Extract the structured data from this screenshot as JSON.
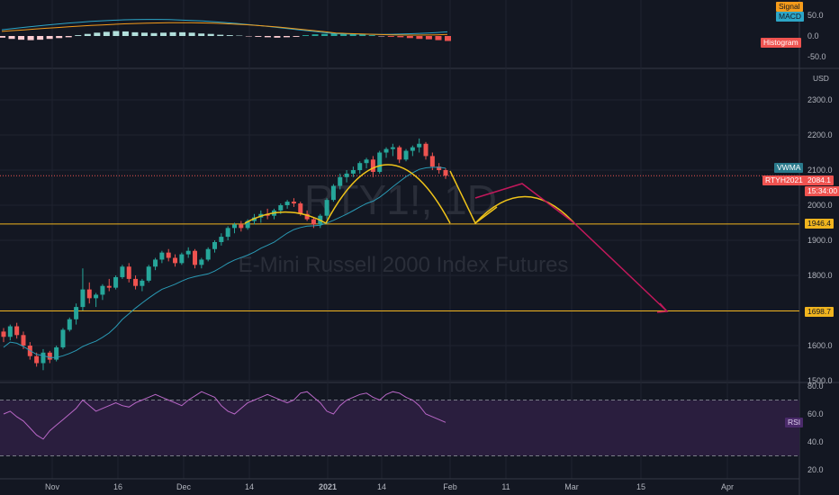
{
  "chart_data": {
    "type": "candlestick",
    "symbol_watermark": "RTY1!, 1D",
    "description_watermark": "E-Mini Russell 2000 Index Futures",
    "currency": "USD",
    "x_ticks": [
      "Nov",
      "16",
      "Dec",
      "14",
      "2021",
      "14",
      "Feb",
      "11",
      "Mar",
      "15",
      "Apr"
    ],
    "price_axis": {
      "ticks": [
        1500.0,
        1600.0,
        1700.0,
        1800.0,
        1900.0,
        2000.0,
        2100.0,
        2200.0,
        2300.0
      ],
      "range": [
        1500,
        2400
      ]
    },
    "levels": {
      "resistance": 1946.4,
      "target": 1698.7
    },
    "last_price": 2084.1,
    "last_symbol": "RTYH2021",
    "countdown": "15:34:00",
    "vwma_label": "VWMA",
    "macd_pane": {
      "ticks": [
        50.0,
        0.0,
        -50.0
      ],
      "legend": [
        "Signal",
        "MACD",
        "Histogram"
      ]
    },
    "rsi_pane": {
      "ticks": [
        80.0,
        60.0,
        40.0,
        20.0
      ],
      "upper_band": 70,
      "lower_band": 30,
      "label": "RSI"
    },
    "candles": [
      [
        1640,
        1650,
        1610,
        1625
      ],
      [
        1625,
        1660,
        1615,
        1655
      ],
      [
        1655,
        1665,
        1620,
        1630
      ],
      [
        1630,
        1640,
        1590,
        1600
      ],
      [
        1600,
        1610,
        1560,
        1570
      ],
      [
        1570,
        1580,
        1540,
        1550
      ],
      [
        1550,
        1590,
        1530,
        1580
      ],
      [
        1580,
        1585,
        1550,
        1560
      ],
      [
        1560,
        1600,
        1555,
        1595
      ],
      [
        1595,
        1650,
        1590,
        1645
      ],
      [
        1645,
        1680,
        1640,
        1675
      ],
      [
        1675,
        1720,
        1660,
        1710
      ],
      [
        1710,
        1820,
        1700,
        1760
      ],
      [
        1760,
        1780,
        1720,
        1735
      ],
      [
        1735,
        1750,
        1710,
        1745
      ],
      [
        1745,
        1775,
        1730,
        1770
      ],
      [
        1770,
        1790,
        1755,
        1765
      ],
      [
        1765,
        1800,
        1760,
        1795
      ],
      [
        1795,
        1830,
        1790,
        1825
      ],
      [
        1825,
        1835,
        1780,
        1790
      ],
      [
        1790,
        1800,
        1760,
        1770
      ],
      [
        1770,
        1790,
        1755,
        1785
      ],
      [
        1785,
        1830,
        1780,
        1825
      ],
      [
        1825,
        1850,
        1815,
        1845
      ],
      [
        1845,
        1870,
        1835,
        1865
      ],
      [
        1865,
        1875,
        1840,
        1850
      ],
      [
        1850,
        1860,
        1825,
        1835
      ],
      [
        1835,
        1865,
        1830,
        1860
      ],
      [
        1860,
        1880,
        1850,
        1870
      ],
      [
        1870,
        1875,
        1820,
        1830
      ],
      [
        1830,
        1850,
        1820,
        1845
      ],
      [
        1845,
        1880,
        1840,
        1875
      ],
      [
        1875,
        1900,
        1865,
        1895
      ],
      [
        1895,
        1920,
        1885,
        1910
      ],
      [
        1910,
        1940,
        1900,
        1935
      ],
      [
        1935,
        1950,
        1920,
        1945
      ],
      [
        1945,
        1955,
        1925,
        1935
      ],
      [
        1935,
        1960,
        1930,
        1955
      ],
      [
        1955,
        1975,
        1945,
        1965
      ],
      [
        1965,
        1985,
        1950,
        1975
      ],
      [
        1975,
        1990,
        1960,
        1970
      ],
      [
        1970,
        1990,
        1960,
        1985
      ],
      [
        1985,
        2005,
        1975,
        2000
      ],
      [
        2000,
        2015,
        1990,
        2010
      ],
      [
        2010,
        2020,
        1995,
        2005
      ],
      [
        2005,
        2010,
        1970,
        1975
      ],
      [
        1975,
        1985,
        1955,
        1960
      ],
      [
        1960,
        1965,
        1935,
        1945
      ],
      [
        1945,
        1975,
        1935,
        1970
      ],
      [
        1970,
        2020,
        1960,
        2015
      ],
      [
        2015,
        2060,
        2010,
        2055
      ],
      [
        2055,
        2090,
        2045,
        2080
      ],
      [
        2080,
        2100,
        2065,
        2090
      ],
      [
        2090,
        2110,
        2080,
        2100
      ],
      [
        2100,
        2125,
        2090,
        2120
      ],
      [
        2120,
        2135,
        2105,
        2130
      ],
      [
        2130,
        2140,
        2080,
        2095
      ],
      [
        2095,
        2155,
        2090,
        2150
      ],
      [
        2150,
        2165,
        2135,
        2160
      ],
      [
        2160,
        2175,
        2140,
        2165
      ],
      [
        2165,
        2170,
        2120,
        2130
      ],
      [
        2130,
        2160,
        2125,
        2155
      ],
      [
        2155,
        2170,
        2140,
        2165
      ],
      [
        2165,
        2190,
        2150,
        2175
      ],
      [
        2175,
        2180,
        2130,
        2140
      ],
      [
        2140,
        2150,
        2100,
        2110
      ],
      [
        2110,
        2120,
        2090,
        2100
      ],
      [
        2100,
        2105,
        2075,
        2084.1
      ]
    ],
    "pattern_annotations": "head-and-shoulders arcs with projected path to target"
  }
}
